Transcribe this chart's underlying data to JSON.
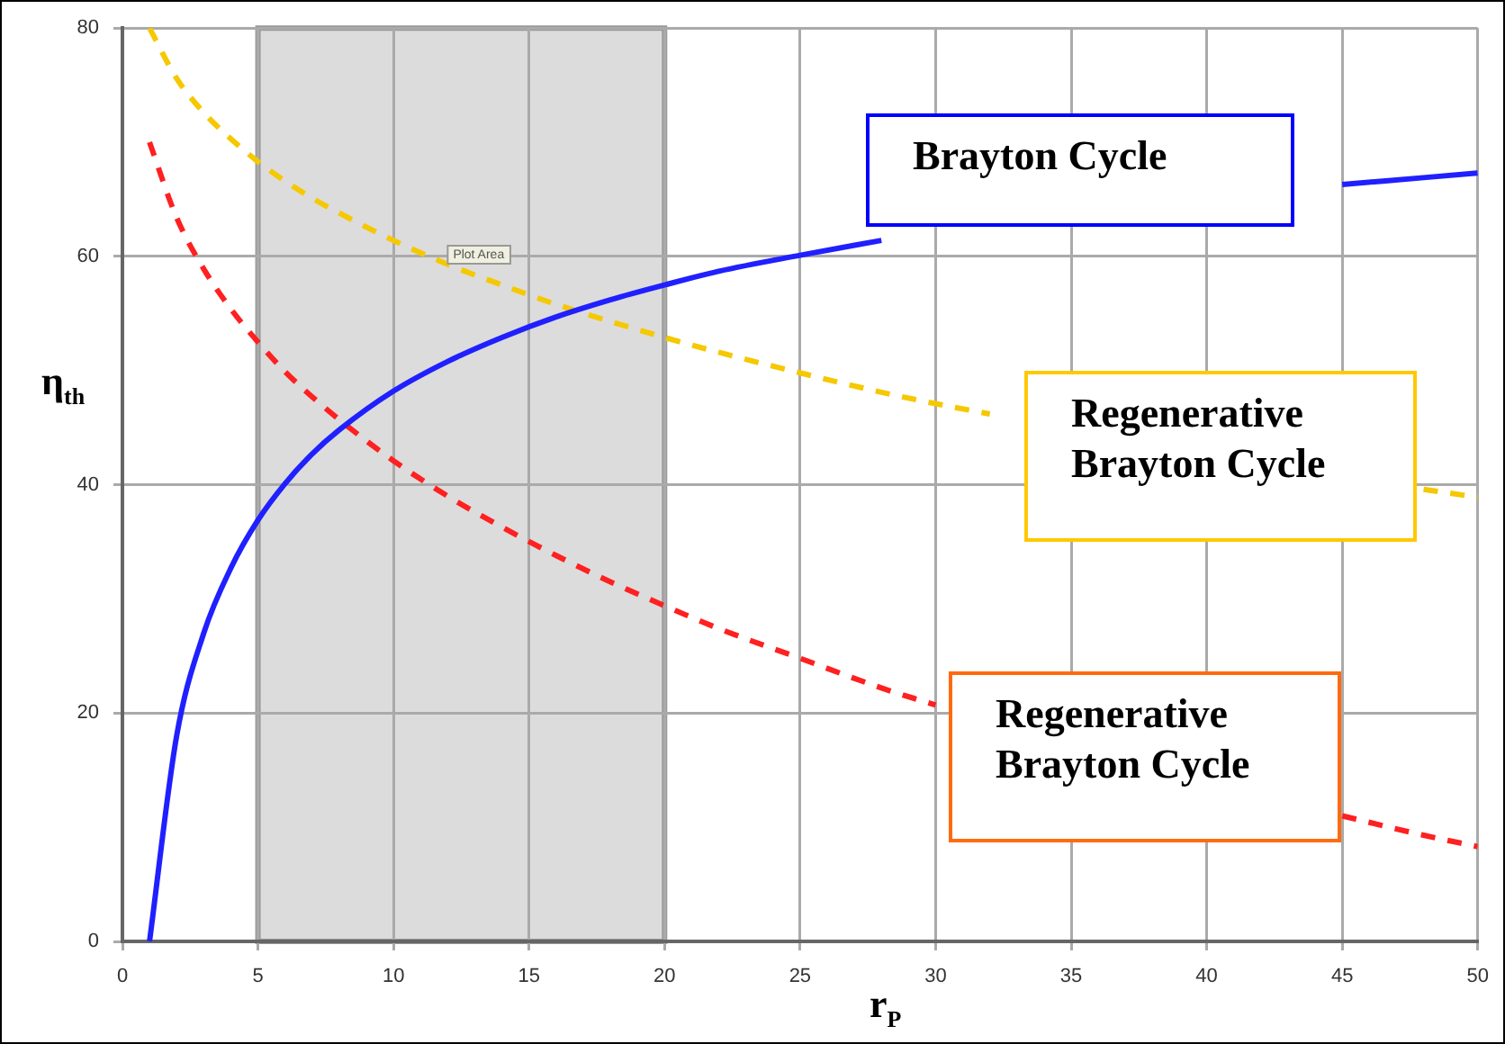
{
  "chart_data": {
    "type": "line",
    "xlabel": "r$_{P}$",
    "ylabel": "η$_{th}$",
    "x": [
      1,
      2,
      3,
      4,
      5,
      6,
      7,
      8,
      10,
      12,
      14,
      16,
      18,
      20,
      22,
      25,
      28,
      30,
      32,
      35,
      38,
      40,
      42,
      45,
      48,
      50
    ],
    "series": [
      {
        "name": "Brayton Cycle",
        "color": "#2020ff",
        "line_style": "solid",
        "values": [
          0,
          18.0,
          27.0,
          32.7,
          36.9,
          40.1,
          42.7,
          44.8,
          48.2,
          50.8,
          52.9,
          54.7,
          56.2,
          57.5,
          58.7,
          60.1,
          61.4,
          null,
          null,
          null,
          null,
          null,
          null,
          66.3,
          66.9,
          67.3
        ]
      },
      {
        "name": "Regenerative Brayton Cycle",
        "color": "#f5c800",
        "line_style": "dashed",
        "values": [
          80,
          75.6,
          72.6,
          70.3,
          68.3,
          66.6,
          65.1,
          63.8,
          61.4,
          59.3,
          57.5,
          55.8,
          54.3,
          52.9,
          51.6,
          49.8,
          48.1,
          47.1,
          46.2,
          null,
          null,
          null,
          null,
          null,
          39.6,
          38.9
        ]
      },
      {
        "name": "Regenerative Brayton Cycle",
        "color": "#ff2020",
        "line_style": "dashed",
        "values": [
          70.0,
          63.4,
          58.9,
          55.4,
          52.5,
          49.9,
          47.7,
          45.7,
          42.1,
          39.0,
          36.3,
          33.8,
          31.5,
          29.4,
          27.4,
          24.8,
          22.2,
          20.7,
          null,
          null,
          null,
          null,
          null,
          11.0,
          9.3,
          8.3
        ]
      }
    ],
    "xlim": [
      0,
      50
    ],
    "xticks": [
      0,
      5,
      10,
      15,
      20,
      25,
      30,
      35,
      40,
      45,
      50
    ],
    "ylim": [
      0,
      80
    ],
    "yticks": [
      0,
      20,
      40,
      60,
      80
    ],
    "grid": true,
    "legend": false,
    "marker": "none",
    "bands": [
      {
        "axis": "x",
        "from": 5,
        "to": 20,
        "color": "#dcdcdc"
      }
    ],
    "annotations": [
      "Plot Area"
    ]
  }
}
